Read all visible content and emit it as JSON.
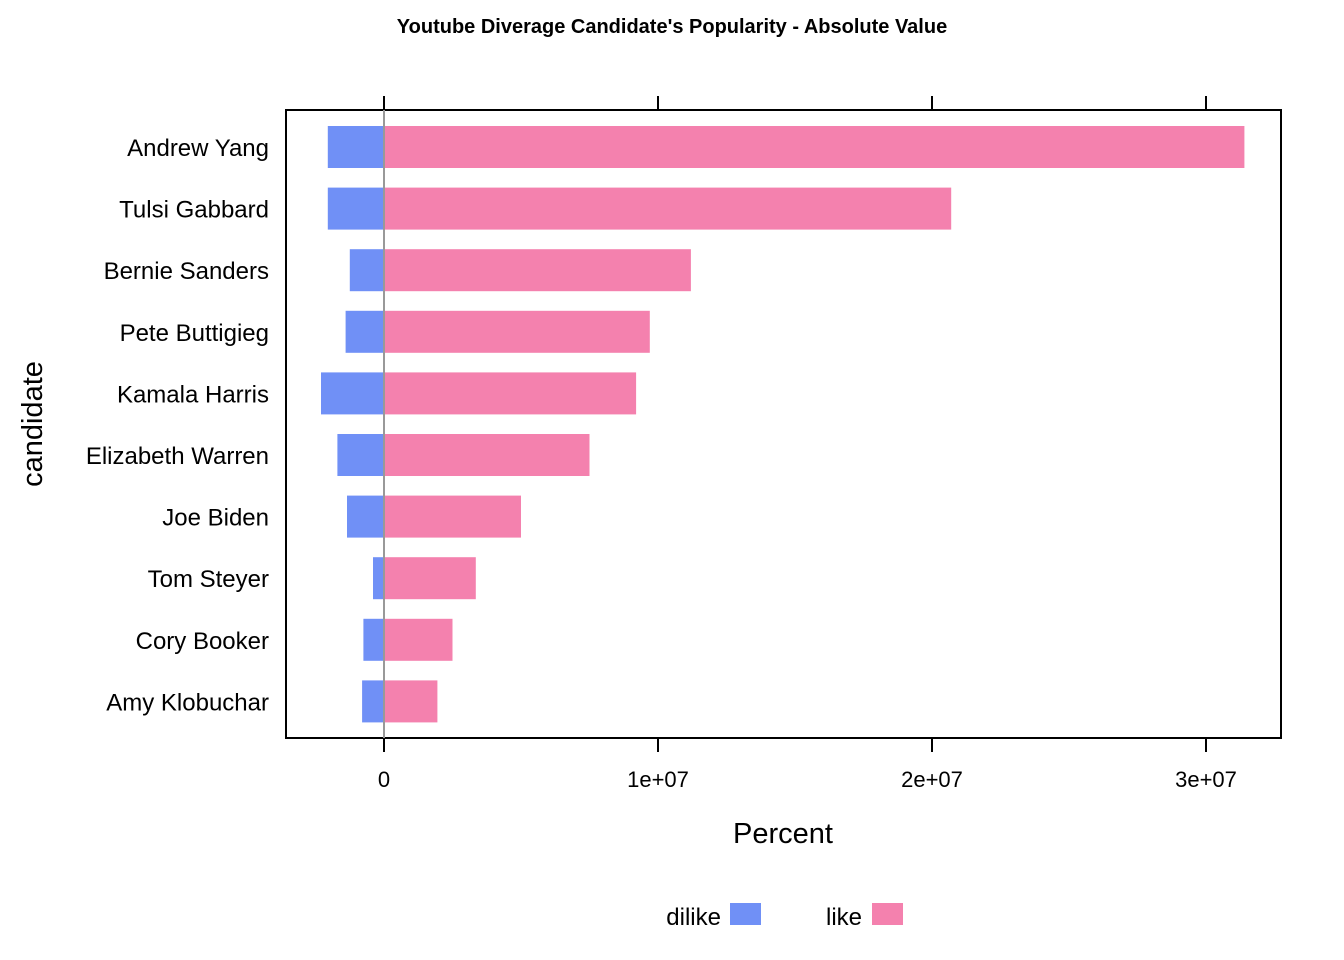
{
  "chart_data": {
    "type": "bar",
    "orientation": "horizontal",
    "stacking": "diverging",
    "title": "Youtube Diverage Candidate's Popularity - Absolute Value",
    "xlabel": "Percent",
    "ylabel": "candidate",
    "xlim": [
      -3600000,
      32700000
    ],
    "xticks": [
      0,
      10000000,
      20000000,
      30000000
    ],
    "xtick_labels": [
      "0",
      "1e+07",
      "2e+07",
      "3e+07"
    ],
    "grid": false,
    "legend_position": "bottom",
    "categories": [
      "Andrew Yang",
      "Tulsi Gabbard",
      "Bernie Sanders",
      "Pete Buttigieg",
      "Kamala Harris",
      "Elizabeth Warren",
      "Joe Biden",
      "Tom Steyer",
      "Cory Booker",
      "Amy Klobuchar"
    ],
    "series": [
      {
        "name": "dilike",
        "color": "#7090F6",
        "values": [
          -2050000,
          -2050000,
          -1250000,
          -1400000,
          -2300000,
          -1700000,
          -1350000,
          -400000,
          -750000,
          -800000
        ]
      },
      {
        "name": "like",
        "color": "#F481AE",
        "values": [
          31400000,
          20700000,
          11200000,
          9700000,
          9200000,
          7500000,
          5000000,
          3350000,
          2500000,
          1950000
        ]
      }
    ],
    "zero_line_color": "#999999"
  }
}
